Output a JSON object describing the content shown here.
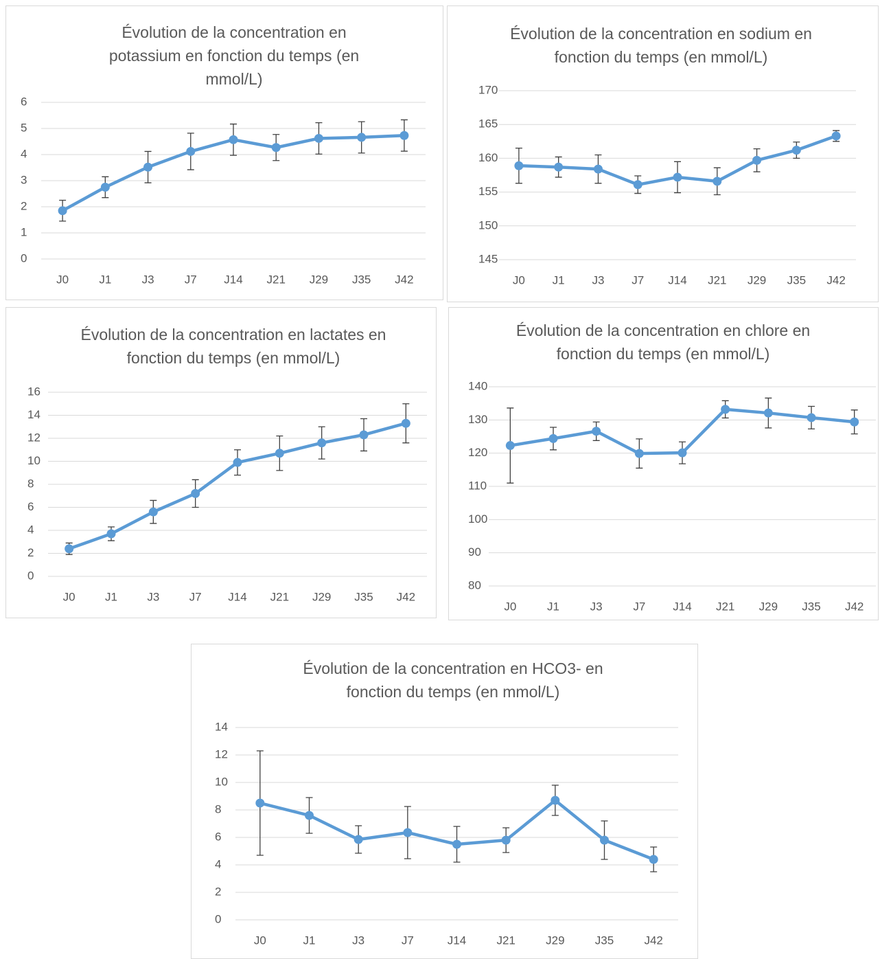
{
  "chart_data": [
    {
      "type": "line",
      "title": "Évolution de la concentration en potassium en fonction du temps (en mmol/L)",
      "categories": [
        "J0",
        "J1",
        "J3",
        "J7",
        "J14",
        "J21",
        "J29",
        "J35",
        "J42"
      ],
      "values": [
        1.85,
        2.75,
        3.52,
        4.12,
        4.57,
        4.27,
        4.62,
        4.66,
        4.73
      ],
      "errors": [
        0.4,
        0.4,
        0.6,
        0.7,
        0.6,
        0.5,
        0.6,
        0.6,
        0.6
      ],
      "color": "#5b9bd5",
      "ylim": [
        0,
        6
      ],
      "yticks": [
        0,
        1,
        2,
        3,
        4,
        5,
        6
      ],
      "grid": true
    },
    {
      "type": "line",
      "title": "Évolution de la concentration en sodium en fonction du temps (en mmol/L)",
      "categories": [
        "J0",
        "J1",
        "J3",
        "J7",
        "J14",
        "J21",
        "J29",
        "J35",
        "J42"
      ],
      "values": [
        158.9,
        158.7,
        158.4,
        156.1,
        157.2,
        156.6,
        159.7,
        161.2,
        163.3
      ],
      "errors": [
        2.6,
        1.5,
        2.1,
        1.3,
        2.3,
        2.0,
        1.7,
        1.2,
        0.8
      ],
      "color": "#5b9bd5",
      "ylim": [
        145,
        170
      ],
      "yticks": [
        145,
        150,
        155,
        160,
        165,
        170
      ],
      "grid": true
    },
    {
      "type": "line",
      "title": "Évolution de la concentration en lactates en fonction du temps (en mmol/L)",
      "categories": [
        "J0",
        "J1",
        "J3",
        "J7",
        "J14",
        "J21",
        "J29",
        "J35",
        "J42"
      ],
      "values": [
        2.4,
        3.7,
        5.6,
        7.2,
        9.9,
        10.7,
        11.6,
        12.3,
        13.3
      ],
      "errors": [
        0.5,
        0.6,
        1.0,
        1.2,
        1.1,
        1.5,
        1.4,
        1.4,
        1.7
      ],
      "color": "#5b9bd5",
      "ylim": [
        0,
        16
      ],
      "yticks": [
        0,
        2,
        4,
        6,
        8,
        10,
        12,
        14,
        16
      ],
      "grid": true
    },
    {
      "type": "line",
      "title": "Évolution de la concentration en chlore en fonction du temps (en mmol/L)",
      "categories": [
        "J0",
        "J1",
        "J3",
        "J7",
        "J14",
        "J21",
        "J29",
        "J35",
        "J42"
      ],
      "values": [
        122.3,
        124.4,
        126.6,
        119.9,
        120.1,
        133.2,
        132.1,
        130.7,
        129.4
      ],
      "errors": [
        11.3,
        3.4,
        2.8,
        4.4,
        3.3,
        2.6,
        4.5,
        3.4,
        3.6
      ],
      "color": "#5b9bd5",
      "ylim": [
        80,
        140
      ],
      "yticks": [
        80,
        90,
        100,
        110,
        120,
        130,
        140
      ],
      "grid": true
    },
    {
      "type": "line",
      "title": "Évolution de la concentration en HCO3- en fonction du temps (en mmol/L)",
      "categories": [
        "J0",
        "J1",
        "J3",
        "J7",
        "J14",
        "J21",
        "J29",
        "J35",
        "J42"
      ],
      "values": [
        8.5,
        7.6,
        5.85,
        6.35,
        5.5,
        5.8,
        8.7,
        5.8,
        4.4
      ],
      "errors": [
        3.8,
        1.3,
        1.0,
        1.9,
        1.3,
        0.9,
        1.1,
        1.4,
        0.9
      ],
      "color": "#5b9bd5",
      "ylim": [
        0,
        14
      ],
      "yticks": [
        0,
        2,
        4,
        6,
        8,
        10,
        12,
        14
      ],
      "grid": true
    }
  ]
}
